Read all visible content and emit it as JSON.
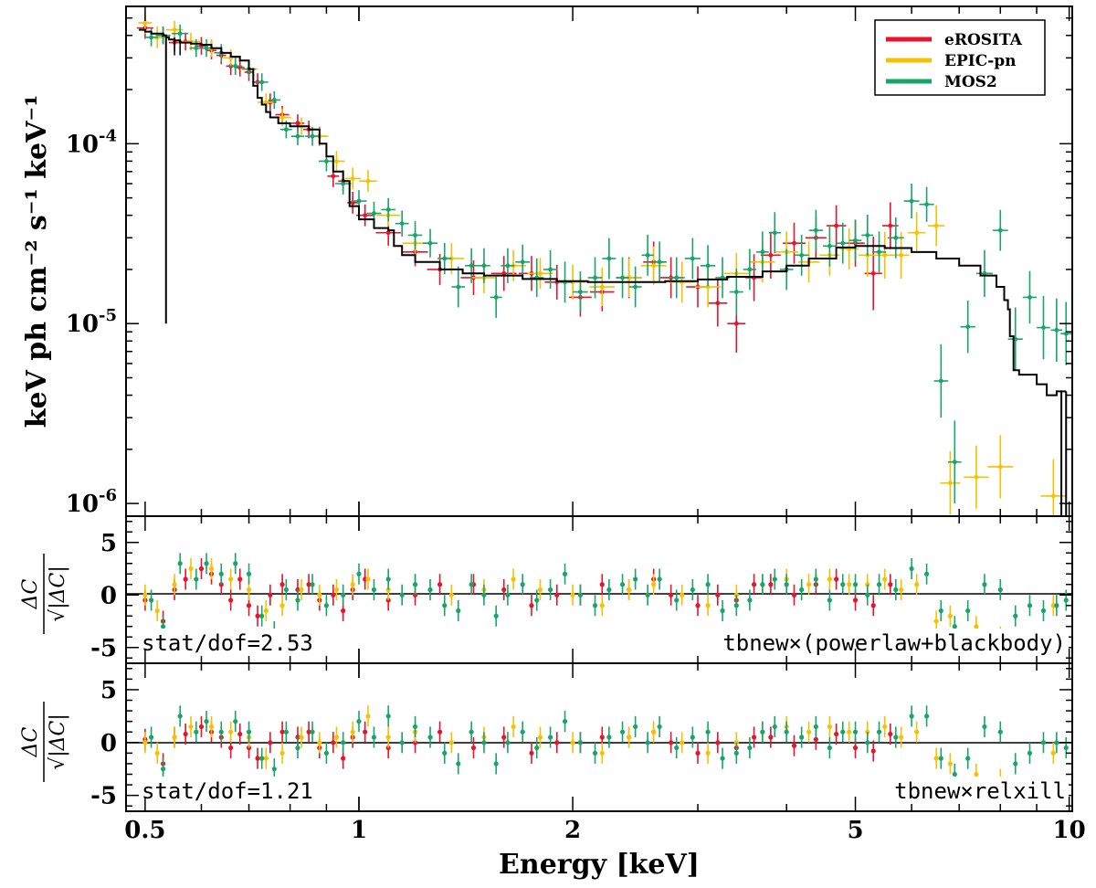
{
  "chart_data": [
    {
      "panel": "spectrum",
      "type": "scatter",
      "xscale": "log",
      "yscale": "log",
      "xlim": [
        0.47,
        10.1
      ],
      "ylim": [
        8.5e-07,
        0.00058
      ],
      "ylabel": "keV ph cm⁻² s⁻¹ keV⁻¹",
      "ytick_values": [
        1e-06,
        1e-05,
        0.0001
      ],
      "ytick_labels": [
        {
          "base": "10",
          "exp": "-6"
        },
        {
          "base": "10",
          "exp": "-5"
        },
        {
          "base": "10",
          "exp": "-4"
        }
      ],
      "legend": {
        "position": "top-right",
        "entries": [
          "eROSITA",
          "EPIC-pn",
          "MOS2"
        ]
      },
      "model": {
        "name": "model",
        "x": [
          0.49,
          0.5,
          0.51,
          0.52,
          0.53,
          0.535,
          0.54,
          0.55,
          0.56,
          0.58,
          0.6,
          0.62,
          0.64,
          0.66,
          0.68,
          0.7,
          0.71,
          0.72,
          0.73,
          0.74,
          0.75,
          0.77,
          0.8,
          0.85,
          0.88,
          0.9,
          0.92,
          0.95,
          0.97,
          1.0,
          1.05,
          1.1,
          1.12,
          1.15,
          1.2,
          1.3,
          1.4,
          1.5,
          1.7,
          1.9,
          2.1,
          2.4,
          2.7,
          3.0,
          3.3,
          3.7,
          4.0,
          4.3,
          4.7,
          5.0,
          5.5,
          6.0,
          6.5,
          7.0,
          7.5,
          7.9,
          8.1,
          8.2,
          8.25,
          8.35,
          8.5,
          9.0,
          9.3,
          9.5,
          9.6,
          9.9
        ],
        "y": [
          0.00043,
          0.00042,
          0.00041,
          0.00041,
          0.0004,
          0.00039,
          0.00038,
          0.000375,
          0.000365,
          0.00036,
          0.000355,
          0.00034,
          0.00032,
          0.000305,
          0.00029,
          0.00026,
          0.00021,
          0.00018,
          0.000165,
          0.00015,
          0.00014,
          0.00013,
          0.000125,
          0.00012,
          0.0001,
          8.5e-05,
          7e-05,
          6.2e-05,
          4.5e-05,
          3.8e-05,
          3.4e-05,
          3.3e-05,
          2.7e-05,
          2.4e-05,
          2.2e-05,
          2e-05,
          1.9e-05,
          1.85e-05,
          1.77e-05,
          1.72e-05,
          1.7e-05,
          1.7e-05,
          1.72e-05,
          1.76e-05,
          1.82e-05,
          1.95e-05,
          2.1e-05,
          2.3e-05,
          2.65e-05,
          2.7e-05,
          2.63e-05,
          2.5e-05,
          2.3e-05,
          2.1e-05,
          1.85e-05,
          1.6e-05,
          1.35e-05,
          1.2e-05,
          8.5e-06,
          5.5e-06,
          5.2e-06,
          4.6e-06,
          4e-06,
          4e-06,
          4.2e-06,
          4.2e-06
        ]
      },
      "series": [
        {
          "name": "eROSITA",
          "x": [
            0.5,
            0.53,
            0.55,
            0.57,
            0.6,
            0.62,
            0.64,
            0.66,
            0.68,
            0.7,
            0.72,
            0.75,
            0.78,
            0.82,
            0.85,
            0.88,
            0.92,
            0.95,
            0.98,
            1.02,
            1.1,
            1.2,
            1.3,
            1.45,
            1.6,
            1.75,
            1.9,
            2.05,
            2.2,
            2.4,
            2.6,
            2.75,
            3.0,
            3.2,
            3.4,
            3.6,
            3.8,
            4.1,
            4.4,
            4.7,
            5.0,
            5.3,
            5.6
          ],
          "y": [
            0.00044,
            0.0004,
            0.000365,
            0.00037,
            0.00035,
            0.00033,
            0.00031,
            0.00027,
            0.000265,
            0.00025,
            0.00022,
            0.00017,
            0.000145,
            0.00013,
            0.00012,
            0.00011,
            6.6e-05,
            6.2e-05,
            4.7e-05,
            4e-05,
            3.2e-05,
            2.5e-05,
            2e-05,
            1.8e-05,
            1.9e-05,
            1.9e-05,
            1.7e-05,
            1.4e-05,
            1.5e-05,
            1.8e-05,
            2.2e-05,
            1.8e-05,
            1.6e-05,
            1.3e-05,
            1e-05,
            1.8e-05,
            2.4e-05,
            2.8e-05,
            3e-05,
            3.5e-05,
            2.8e-05,
            1.9e-05,
            3.5e-05
          ],
          "yerr": [
            0.15,
            0.12,
            0.12,
            0.12,
            0.12,
            0.12,
            0.12,
            0.12,
            0.12,
            0.12,
            0.12,
            0.12,
            0.12,
            0.12,
            0.12,
            0.13,
            0.15,
            0.15,
            0.15,
            0.15,
            0.18,
            0.2,
            0.22,
            0.25,
            0.25,
            0.25,
            0.25,
            0.28,
            0.28,
            0.3,
            0.3,
            0.3,
            0.3,
            0.35,
            0.45,
            0.35,
            0.35,
            0.3,
            0.3,
            0.3,
            0.35,
            0.6,
            0.35
          ],
          "residual_model_1": [
            -0.5,
            -2.5,
            0.5,
            1.5,
            2.5,
            2.0,
            1.0,
            -0.5,
            1.5,
            -1.0,
            -2.0,
            0.0,
            1.0,
            0.5,
            1.0,
            -0.5,
            0.0,
            -1.5,
            0.5,
            1.5,
            -0.5,
            0.0,
            1.0,
            1.0,
            0.5,
            -1.0,
            0.0,
            0.0,
            1.0,
            0.5,
            1.5,
            0.0,
            -1.0,
            0.0,
            -0.5,
            1.0,
            1.0,
            0.0,
            1.0,
            1.5,
            -0.5,
            -1.0,
            1.0
          ],
          "residual_model_2": [
            0.3,
            -2.0,
            0.5,
            0.8,
            1.5,
            1.0,
            0.5,
            -0.5,
            0.8,
            -0.5,
            -1.5,
            0.0,
            1.0,
            0.5,
            1.0,
            -0.5,
            0.0,
            -1.5,
            0.5,
            1.0,
            -0.5,
            0.0,
            1.0,
            -0.5,
            0.5,
            -1.0,
            0.0,
            0.0,
            0.5,
            0.5,
            1.0,
            0.0,
            -1.0,
            0.0,
            -0.5,
            0.5,
            0.5,
            -0.3,
            0.3,
            0.8,
            -0.5,
            -0.8,
            0.8
          ]
        },
        {
          "name": "EPIC-pn",
          "x": [
            0.5,
            0.52,
            0.55,
            0.58,
            0.62,
            0.66,
            0.7,
            0.74,
            0.78,
            0.83,
            0.88,
            0.93,
            0.98,
            1.03,
            1.1,
            1.2,
            1.35,
            1.5,
            1.65,
            1.8,
            2.0,
            2.2,
            2.4,
            2.6,
            2.85,
            3.1,
            3.4,
            3.7,
            4.0,
            4.3,
            4.6,
            4.9,
            5.2,
            5.5,
            5.8,
            6.1,
            6.5,
            6.8,
            7.4,
            8.0,
            9.5
          ],
          "y": [
            0.00047,
            0.00039,
            0.00043,
            0.00037,
            0.00034,
            0.0003,
            0.00026,
            0.00017,
            0.00014,
            0.000125,
            0.00011,
            8e-05,
            6.4e-05,
            6.2e-05,
            4e-05,
            2.8e-05,
            2.3e-05,
            1.8e-05,
            2.1e-05,
            1.9e-05,
            1.7e-05,
            1.6e-05,
            1.8e-05,
            2.1e-05,
            1.7e-05,
            1.6e-05,
            1.9e-05,
            2.2e-05,
            2.5e-05,
            2.2e-05,
            2.4e-05,
            2.6e-05,
            2.4e-05,
            2.4e-05,
            2.4e-05,
            3.2e-05,
            3.5e-05,
            1.3e-06,
            1.4e-06,
            1.6e-06,
            1.1e-06
          ],
          "yerr": [
            0.15,
            0.15,
            0.12,
            0.12,
            0.12,
            0.12,
            0.12,
            0.12,
            0.12,
            0.12,
            0.12,
            0.14,
            0.15,
            0.15,
            0.15,
            0.2,
            0.22,
            0.22,
            0.22,
            0.22,
            0.25,
            0.28,
            0.28,
            0.28,
            0.3,
            0.3,
            0.3,
            0.3,
            0.3,
            0.3,
            0.3,
            0.3,
            0.32,
            0.35,
            0.35,
            0.3,
            0.3,
            0.5,
            0.5,
            0.5,
            0.6
          ],
          "residual_model_1": [
            0.0,
            -1.5,
            1.0,
            2.5,
            2.5,
            1.5,
            0.5,
            -1.5,
            -1.0,
            0.5,
            0.0,
            0.5,
            1.0,
            1.5,
            0.5,
            1.0,
            0.0,
            0.5,
            1.5,
            0.5,
            0.0,
            -1.0,
            0.5,
            1.0,
            0.0,
            -1.0,
            0.0,
            1.0,
            1.5,
            1.0,
            1.5,
            1.0,
            1.0,
            1.5,
            0.5,
            1.0,
            -2.5,
            -2.0,
            -3.0,
            -4.0,
            -1.0
          ],
          "residual_model_2": [
            0.0,
            -1.0,
            0.5,
            1.5,
            1.5,
            1.0,
            0.5,
            -1.5,
            -1.0,
            0.5,
            0.0,
            0.5,
            1.0,
            2.5,
            0.5,
            1.0,
            0.0,
            0.5,
            1.5,
            0.5,
            0.0,
            -1.0,
            0.5,
            1.0,
            0.0,
            -1.0,
            0.0,
            1.0,
            1.5,
            1.0,
            1.5,
            1.0,
            1.0,
            1.5,
            0.5,
            1.0,
            -1.5,
            -2.0,
            -3.0,
            -3.5,
            -1.0
          ]
        },
        {
          "name": "MOS2",
          "x": [
            0.51,
            0.53,
            0.56,
            0.59,
            0.61,
            0.64,
            0.67,
            0.7,
            0.73,
            0.76,
            0.79,
            0.82,
            0.86,
            0.9,
            0.95,
            1.0,
            1.05,
            1.1,
            1.15,
            1.2,
            1.26,
            1.32,
            1.38,
            1.44,
            1.5,
            1.56,
            1.62,
            1.7,
            1.78,
            1.86,
            1.95,
            2.05,
            2.15,
            2.25,
            2.35,
            2.45,
            2.55,
            2.65,
            2.8,
            2.95,
            3.1,
            3.25,
            3.4,
            3.55,
            3.7,
            3.85,
            4.0,
            4.2,
            4.4,
            4.6,
            4.8,
            5.0,
            5.2,
            5.4,
            5.7,
            6.0,
            6.3,
            6.6,
            6.9,
            7.2,
            7.6,
            8.0,
            8.4,
            8.8,
            9.2,
            9.6,
            9.9
          ],
          "y": [
            0.00039,
            0.0004,
            0.00041,
            0.00034,
            0.00034,
            0.00032,
            0.00027,
            0.00026,
            0.00022,
            0.000175,
            0.00012,
            0.00011,
            0.00011,
            8e-05,
            6e-05,
            4.8e-05,
            4.1e-05,
            4.3e-05,
            3.6e-05,
            3.1e-05,
            2.8e-05,
            2.3e-05,
            1.6e-05,
            2.1e-05,
            2.1e-05,
            1.4e-05,
            2.1e-05,
            2.2e-05,
            1.8e-05,
            2e-05,
            1.7e-05,
            1.5e-05,
            1.8e-05,
            2.3e-05,
            1.8e-05,
            1.6e-05,
            2.4e-05,
            2.2e-05,
            1.8e-05,
            2.3e-05,
            2.1e-05,
            1.8e-05,
            1.5e-05,
            2e-05,
            2.5e-05,
            3.2e-05,
            2e-05,
            2.4e-05,
            3.3e-05,
            2.7e-05,
            2.8e-05,
            2.9e-05,
            3.1e-05,
            2.5e-05,
            3e-05,
            4.8e-05,
            4.6e-05,
            4.8e-06,
            1.7e-06,
            9.6e-06,
            1.9e-05,
            3.3e-05,
            8.2e-06,
            1.4e-05,
            9.5e-06,
            9.2e-06,
            8.8e-06
          ],
          "yerr": [
            0.12,
            0.12,
            0.12,
            0.12,
            0.12,
            0.12,
            0.12,
            0.12,
            0.12,
            0.12,
            0.12,
            0.12,
            0.13,
            0.14,
            0.15,
            0.15,
            0.16,
            0.16,
            0.18,
            0.2,
            0.2,
            0.22,
            0.3,
            0.25,
            0.25,
            0.3,
            0.25,
            0.25,
            0.28,
            0.28,
            0.3,
            0.3,
            0.3,
            0.3,
            0.3,
            0.3,
            0.3,
            0.3,
            0.3,
            0.3,
            0.3,
            0.3,
            0.35,
            0.3,
            0.3,
            0.3,
            0.3,
            0.3,
            0.3,
            0.3,
            0.3,
            0.3,
            0.3,
            0.3,
            0.3,
            0.25,
            0.25,
            0.6,
            0.7,
            0.4,
            0.35,
            0.3,
            0.5,
            0.4,
            0.5,
            0.5,
            0.5
          ],
          "residual_model_1": [
            -0.5,
            -3.0,
            3.0,
            1.5,
            3.0,
            2.0,
            3.0,
            2.0,
            -2.0,
            -3.5,
            0.5,
            -0.5,
            1.0,
            -1.0,
            0.0,
            2.0,
            0.5,
            1.5,
            0.0,
            1.0,
            0.5,
            -1.0,
            -1.5,
            1.0,
            0.0,
            -2.0,
            0.0,
            1.0,
            -0.5,
            0.5,
            2.0,
            0.0,
            -1.0,
            0.5,
            1.0,
            1.5,
            0.0,
            1.5,
            -0.5,
            0.5,
            1.0,
            -1.5,
            -1.0,
            -0.5,
            1.0,
            1.5,
            1.0,
            0.5,
            1.5,
            -0.5,
            1.0,
            1.0,
            0.0,
            1.0,
            0.5,
            2.5,
            2.0,
            -1.5,
            -3.0,
            -1.5,
            1.0,
            0.5,
            -2.0,
            -1.0,
            -1.5,
            -1.0,
            -0.5
          ],
          "residual_model_2": [
            0.5,
            -2.5,
            2.5,
            1.0,
            2.0,
            1.0,
            2.0,
            1.0,
            -1.5,
            -2.5,
            1.0,
            -0.5,
            1.0,
            -1.0,
            0.0,
            2.0,
            0.5,
            2.5,
            0.0,
            1.5,
            0.5,
            -1.0,
            -2.0,
            1.0,
            0.0,
            -2.0,
            0.0,
            1.0,
            -0.5,
            0.5,
            2.0,
            0.0,
            -1.0,
            0.5,
            1.0,
            1.5,
            0.0,
            1.5,
            -0.5,
            0.5,
            1.0,
            -1.5,
            -1.0,
            -0.5,
            1.0,
            1.5,
            1.0,
            0.5,
            1.5,
            -0.5,
            1.0,
            1.0,
            0.0,
            1.0,
            0.5,
            2.5,
            2.5,
            -1.5,
            -3.0,
            -1.5,
            1.5,
            1.0,
            -2.0,
            -1.0,
            0.0,
            0.0,
            -0.5
          ]
        }
      ]
    },
    {
      "panel": "residuals-powerlaw-blackbody",
      "type": "scatter",
      "ylabel": "ΔC/√|ΔC|",
      "ylim": [
        -6.5,
        7.5
      ],
      "yticks": [
        5,
        0,
        -5
      ],
      "stat_text": "stat/dof=2.53",
      "model_text": "tbnew×(powerlaw+blackbody)"
    },
    {
      "panel": "residuals-relxill",
      "type": "scatter",
      "ylabel": "ΔC/√|ΔC|",
      "ylim": [
        -6.5,
        7.5
      ],
      "yticks": [
        5,
        0,
        -5
      ],
      "stat_text": "stat/dof=1.21",
      "model_text": "tbnew×relxill"
    },
    {
      "panel": "x-axis",
      "xlabel": "Energy [keV]",
      "xtick_values": [
        0.5,
        1,
        2,
        5,
        10
      ],
      "xtick_labels": [
        "0.5",
        "1",
        "2",
        "5",
        "10"
      ]
    }
  ],
  "colors": {
    "eROSITA": "#e8132d",
    "EPIC-pn": "#f5c100",
    "MOS2": "#17a56a",
    "model": "#000000",
    "axes": "#000000"
  }
}
